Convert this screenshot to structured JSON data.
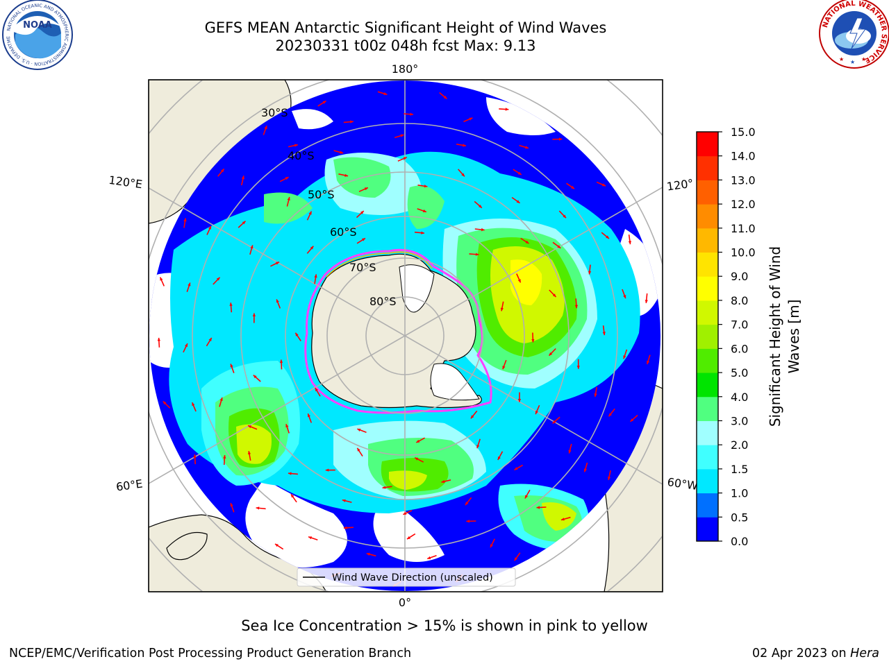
{
  "header": {
    "title_line1": "GEFS MEAN Antarctic Significant Height of Wind Waves",
    "title_line2": "20230331 t00z 048h fcst   Max: 9.13"
  },
  "logos": {
    "left": {
      "name": "NOAA",
      "text": "NOAA",
      "ring_text": "NATIONAL OCEANIC AND ATMOSPHERIC ADMINISTRATION · U.S. DEPARTMENT OF COMMERCE"
    },
    "right": {
      "name": "National Weather Service",
      "ring_text": "NATIONAL WEATHER SERVICE"
    }
  },
  "map": {
    "projection": "south-polar-stereographic",
    "longitude_labels": {
      "top": "180°",
      "left_upper": "120°E",
      "right_upper": "120°",
      "left_lower": "60°E",
      "right_lower": "60°W",
      "bottom": "0°"
    },
    "latitude_labels": [
      "30°S",
      "40°S",
      "50°S",
      "60°S",
      "70°S",
      "80°S"
    ],
    "colors": {
      "land": "#efecdc",
      "ocean_low": "#0000ff",
      "no_data": "#ffffff",
      "ice_edge": "#ff40ff",
      "arrow": "#ff0000",
      "grid": "#b0b0b0"
    },
    "legend_label": "Wind Wave Direction (unscaled)"
  },
  "colorbar": {
    "title": "Significant Height of Wind Waves [m]",
    "title_line1": "Significant Height of Wind",
    "title_line2": "Waves [m]",
    "ticks": [
      "0.0",
      "0.5",
      "1.0",
      "1.5",
      "2.0",
      "3.0",
      "4.0",
      "5.0",
      "6.0",
      "7.0",
      "8.0",
      "9.0",
      "10.0",
      "11.0",
      "12.0",
      "13.0",
      "14.0",
      "15.0"
    ],
    "colors": [
      "#0000ff",
      "#0070ff",
      "#00e8ff",
      "#40ffff",
      "#a0ffff",
      "#50ff80",
      "#00e400",
      "#50ec00",
      "#a0f000",
      "#d0f800",
      "#ffff00",
      "#ffe400",
      "#ffb800",
      "#ff8c00",
      "#ff6000",
      "#ff3000",
      "#ff0000"
    ]
  },
  "caption": "Sea Ice Concentration > 15% is shown in pink to yellow",
  "footer": {
    "left": "NCEP/EMC/Verification Post Processing Product Generation Branch",
    "right_date": "02 Apr 2023 on ",
    "right_system": "Hera"
  }
}
